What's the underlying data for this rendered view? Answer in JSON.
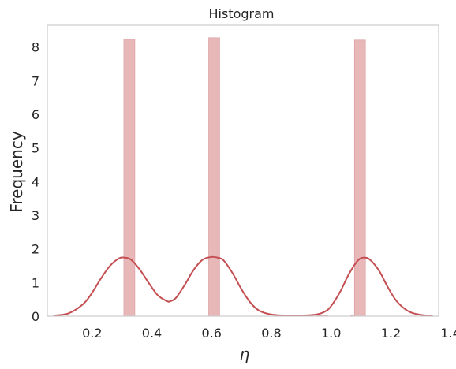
{
  "chart_data": {
    "type": "bar",
    "title": "Histogram",
    "xlabel": "η",
    "ylabel": "Frequency",
    "xlim": [
      0.05,
      1.36
    ],
    "ylim": [
      0,
      8.65
    ],
    "grid": false,
    "xticks": [
      {
        "value": 0.2,
        "label": "0.2"
      },
      {
        "value": 0.4,
        "label": "0.4"
      },
      {
        "value": 0.6,
        "label": "0.6"
      },
      {
        "value": 0.8,
        "label": "0.8"
      },
      {
        "value": 1.0,
        "label": "1.0"
      },
      {
        "value": 1.2,
        "label": "1.2"
      },
      {
        "value": 1.4,
        "label": "1.4"
      }
    ],
    "yticks": [
      {
        "value": 0,
        "label": "0"
      },
      {
        "value": 1,
        "label": "1"
      },
      {
        "value": 2,
        "label": "2"
      },
      {
        "value": 3,
        "label": "3"
      },
      {
        "value": 4,
        "label": "4"
      },
      {
        "value": 5,
        "label": "5"
      },
      {
        "value": 6,
        "label": "6"
      },
      {
        "value": 7,
        "label": "7"
      },
      {
        "value": 8,
        "label": "8"
      }
    ],
    "bars": [
      {
        "x0": 0.306,
        "x1": 0.343,
        "height": 8.23
      },
      {
        "x0": 0.59,
        "x1": 0.627,
        "height": 8.28
      },
      {
        "x0": 0.952,
        "x1": 0.989,
        "height": 0.02
      },
      {
        "x0": 1.065,
        "x1": 1.102,
        "height": 0.02
      },
      {
        "x0": 1.078,
        "x1": 1.115,
        "height": 8.21
      }
    ],
    "kde": {
      "x": [
        0.07,
        0.12,
        0.17,
        0.2,
        0.23,
        0.26,
        0.29,
        0.31,
        0.33,
        0.36,
        0.39,
        0.42,
        0.45,
        0.46,
        0.48,
        0.51,
        0.54,
        0.57,
        0.6,
        0.62,
        0.64,
        0.67,
        0.7,
        0.73,
        0.76,
        0.8,
        0.85,
        0.9,
        0.95,
        0.98,
        1.0,
        1.03,
        1.06,
        1.09,
        1.11,
        1.13,
        1.16,
        1.19,
        1.22,
        1.26,
        1.3,
        1.34
      ],
      "y": [
        0.02,
        0.08,
        0.36,
        0.7,
        1.13,
        1.5,
        1.72,
        1.74,
        1.68,
        1.38,
        0.98,
        0.62,
        0.45,
        0.44,
        0.54,
        0.93,
        1.38,
        1.68,
        1.76,
        1.74,
        1.66,
        1.28,
        0.8,
        0.4,
        0.16,
        0.05,
        0.02,
        0.02,
        0.05,
        0.14,
        0.3,
        0.72,
        1.26,
        1.66,
        1.74,
        1.68,
        1.36,
        0.86,
        0.44,
        0.14,
        0.04,
        0.01
      ]
    },
    "colors": {
      "bar_fill": "#e8b7b8",
      "bar_edge": "#d99c9e",
      "kde_line": "#c44e52",
      "frame": "#cccccc"
    }
  }
}
